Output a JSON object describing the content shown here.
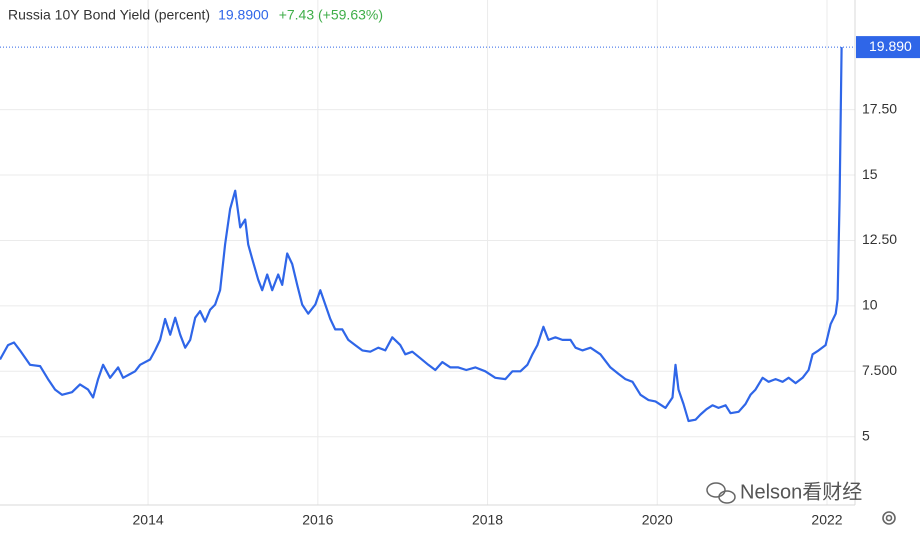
{
  "chart_data": {
    "type": "line",
    "title": "Russia 10Y Bond Yield (percent)",
    "last_price": "19.8900",
    "change": "+7.43 (+59.63%)",
    "watermark": "Nelson看财经",
    "color": "#2f66e8",
    "grid": true,
    "xlim": [
      2012.255,
      2022.33
    ],
    "xticks": [
      2014,
      2016,
      2018,
      2020,
      2022
    ],
    "ylim": [
      2.39,
      21.69
    ],
    "yticks": [
      5,
      {
        "value": 7.5,
        "label": "7.500"
      },
      10,
      {
        "value": 12.5,
        "label": "12.50"
      },
      15,
      {
        "value": 17.5,
        "label": "17.50"
      }
    ],
    "last_value_label": "19.890",
    "x": [
      2012.255,
      2012.349,
      2012.42,
      2012.491,
      2012.609,
      2012.727,
      2012.821,
      2012.904,
      2012.986,
      2013.104,
      2013.198,
      2013.293,
      2013.352,
      2013.411,
      2013.47,
      2013.552,
      2013.647,
      2013.705,
      2013.847,
      2013.906,
      2014.024,
      2014.083,
      2014.142,
      2014.201,
      2014.26,
      2014.319,
      2014.378,
      2014.437,
      2014.496,
      2014.555,
      2014.613,
      2014.672,
      2014.731,
      2014.79,
      2014.849,
      2014.908,
      2014.967,
      2015.026,
      2015.085,
      2015.144,
      2015.18,
      2015.227,
      2015.297,
      2015.345,
      2015.404,
      2015.463,
      2015.533,
      2015.58,
      2015.639,
      2015.698,
      2015.757,
      2015.816,
      2015.887,
      2015.97,
      2016.029,
      2016.088,
      2016.147,
      2016.205,
      2016.288,
      2016.359,
      2016.441,
      2016.524,
      2016.618,
      2016.713,
      2016.795,
      2016.878,
      2016.972,
      2017.031,
      2017.113,
      2017.208,
      2017.302,
      2017.385,
      2017.467,
      2017.562,
      2017.656,
      2017.75,
      2017.856,
      2017.974,
      2018.092,
      2018.21,
      2018.293,
      2018.387,
      2018.47,
      2018.529,
      2018.588,
      2018.658,
      2018.717,
      2018.8,
      2018.882,
      2018.977,
      2019.036,
      2019.118,
      2019.213,
      2019.33,
      2019.448,
      2019.543,
      2019.625,
      2019.708,
      2019.802,
      2019.897,
      2019.979,
      2020.097,
      2020.18,
      2020.215,
      2020.25,
      2020.309,
      2020.368,
      2020.451,
      2020.51,
      2020.58,
      2020.651,
      2020.722,
      2020.805,
      2020.863,
      2020.958,
      2021.04,
      2021.099,
      2021.158,
      2021.241,
      2021.312,
      2021.394,
      2021.477,
      2021.547,
      2021.63,
      2021.713,
      2021.783,
      2021.83,
      2021.901,
      2021.984,
      2022.043,
      2022.102,
      2022.125,
      2022.149,
      2022.172
    ],
    "values": [
      7.95,
      8.5,
      8.6,
      8.3,
      7.75,
      7.7,
      7.2,
      6.8,
      6.6,
      6.7,
      7.0,
      6.8,
      6.5,
      7.2,
      7.75,
      7.25,
      7.65,
      7.25,
      7.5,
      7.75,
      7.95,
      8.3,
      8.7,
      9.5,
      8.9,
      9.55,
      8.9,
      8.4,
      8.7,
      9.55,
      9.8,
      9.4,
      9.85,
      10.05,
      10.6,
      12.35,
      13.7,
      14.4,
      13.0,
      13.3,
      12.35,
      11.8,
      11.0,
      10.6,
      11.2,
      10.6,
      11.2,
      10.8,
      12.0,
      11.6,
      10.8,
      10.05,
      9.7,
      10.05,
      10.6,
      10.05,
      9.5,
      9.1,
      9.1,
      8.7,
      8.5,
      8.3,
      8.25,
      8.4,
      8.3,
      8.8,
      8.5,
      8.15,
      8.25,
      8.0,
      7.75,
      7.55,
      7.85,
      7.65,
      7.65,
      7.55,
      7.65,
      7.5,
      7.25,
      7.2,
      7.5,
      7.5,
      7.75,
      8.15,
      8.5,
      9.2,
      8.7,
      8.8,
      8.7,
      8.7,
      8.4,
      8.3,
      8.4,
      8.15,
      7.65,
      7.4,
      7.2,
      7.1,
      6.6,
      6.4,
      6.35,
      6.1,
      6.5,
      7.75,
      6.8,
      6.25,
      5.6,
      5.65,
      5.85,
      6.05,
      6.2,
      6.1,
      6.2,
      5.9,
      5.95,
      6.25,
      6.6,
      6.8,
      7.25,
      7.1,
      7.2,
      7.1,
      7.25,
      7.05,
      7.25,
      7.55,
      8.15,
      8.3,
      8.5,
      9.3,
      9.7,
      10.25,
      14.1,
      19.89
    ]
  }
}
